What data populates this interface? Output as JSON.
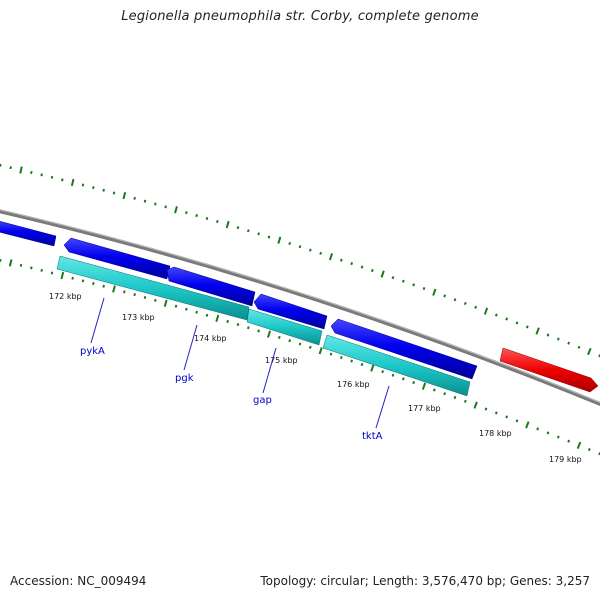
{
  "title": "Legionella pneumophila str. Corby, complete genome",
  "footer": {
    "accession": "Accession: NC_009494",
    "summary": "Topology: circular; Length: 3,576,470 bp; Genes: 3,257"
  },
  "colors": {
    "backbone": "#888888",
    "tick": "#1a7a1a",
    "forward_cds": "#0000ee",
    "reverse_cds": "#ee0000",
    "gene": "#1ec8c8",
    "gene_label": "#0000cc",
    "kbp_label": "#111111"
  },
  "ticks": {
    "labels": [
      "172 kbp",
      "173 kbp",
      "174 kbp",
      "175 kbp",
      "176 kbp",
      "177 kbp",
      "178 kbp",
      "179 kbp"
    ]
  },
  "features": {
    "cds": [
      {
        "name": "cds-left-edge",
        "strand": "forward"
      },
      {
        "name": "cds-pykA",
        "strand": "reverse"
      },
      {
        "name": "cds-pgk",
        "strand": "forward"
      },
      {
        "name": "cds-gap",
        "strand": "reverse"
      },
      {
        "name": "cds-tktA",
        "strand": "reverse"
      },
      {
        "name": "cds-right-red",
        "strand": "forward"
      }
    ],
    "genes": [
      {
        "name": "gene-pykA"
      },
      {
        "name": "gene-pgk"
      },
      {
        "name": "gene-gap"
      },
      {
        "name": "gene-tktA"
      }
    ]
  },
  "gene_labels": [
    "pykA",
    "pgk",
    "gap",
    "tktA"
  ]
}
